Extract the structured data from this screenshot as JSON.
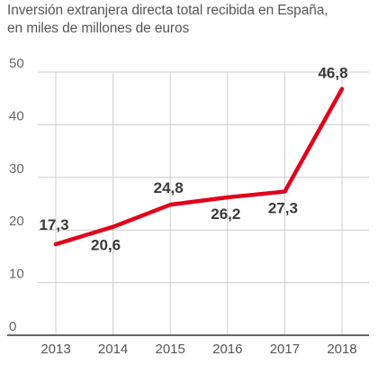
{
  "chart_data": {
    "type": "line",
    "title": "Inversión extranjera directa total recibida en España,",
    "subtitle": "en miles de millones de euros",
    "xlabel": "",
    "ylabel": "",
    "x": [
      "2013",
      "2014",
      "2015",
      "2016",
      "2017",
      "2018"
    ],
    "series": [
      {
        "values": [
          17.3,
          20.6,
          24.8,
          26.2,
          27.3,
          46.8
        ],
        "labels": [
          "17,3",
          "20,6",
          "24,8",
          "26,2",
          "27,3",
          "46,8"
        ],
        "color": "#e3001b"
      }
    ],
    "ylim": [
      0,
      50
    ],
    "yticks": [
      "0",
      "10",
      "20",
      "30",
      "40",
      "50"
    ],
    "grid": {
      "horizontal": true,
      "vertical": true
    },
    "legend": "none",
    "gridline_color": "#cccccc",
    "axis_color": "#333333"
  }
}
